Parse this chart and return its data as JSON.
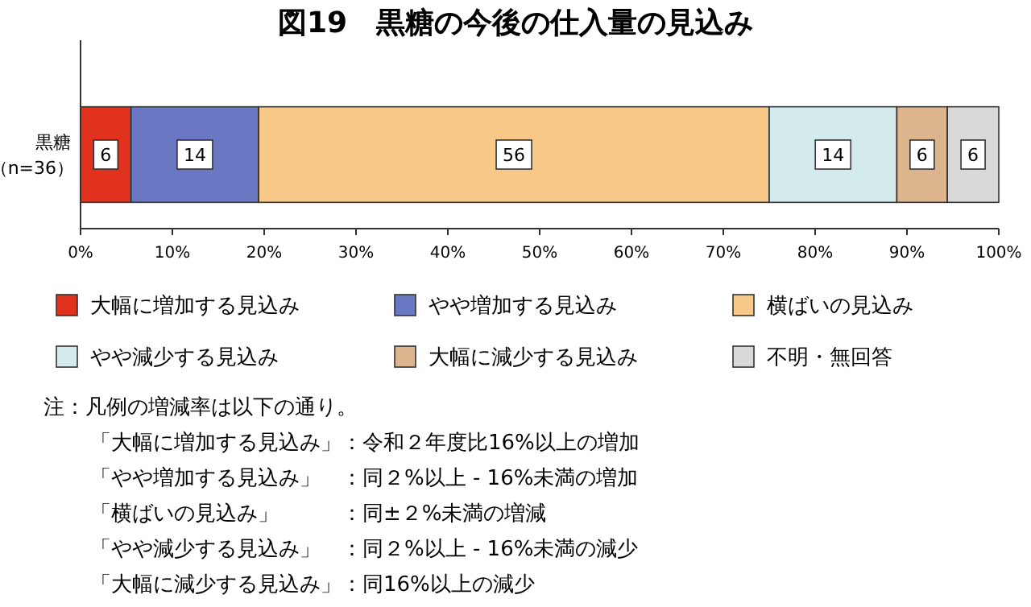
{
  "chart_data": {
    "type": "bar",
    "orientation": "horizontal",
    "stacked": true,
    "title": "図19　黒糖の今後の仕入量の見込み",
    "categories": [
      "黒糖（n=36）"
    ],
    "series": [
      {
        "name": "大幅に増加する見込み",
        "color": "#e0321c",
        "values": [
          5.5
        ],
        "value_labels": [
          "6"
        ]
      },
      {
        "name": "やや増加する見込み",
        "color": "#6a78c4",
        "values": [
          13.9
        ],
        "value_labels": [
          "14"
        ]
      },
      {
        "name": "横ばいの見込み",
        "color": "#f8c888",
        "values": [
          55.6
        ],
        "value_labels": [
          "56"
        ]
      },
      {
        "name": "やや減少する見込み",
        "color": "#d4ebee",
        "values": [
          13.9
        ],
        "value_labels": [
          "14"
        ]
      },
      {
        "name": "大幅に減少する見込み",
        "color": "#dcb58e",
        "values": [
          5.5
        ],
        "value_labels": [
          "6"
        ]
      },
      {
        "name": "不明・無回答",
        "color": "#d9d9d9",
        "values": [
          5.6
        ],
        "value_labels": [
          "6"
        ]
      }
    ],
    "xlim": [
      0,
      100
    ],
    "xticks": [
      {
        "value": 0,
        "label": "0%"
      },
      {
        "value": 10,
        "label": "10%"
      },
      {
        "value": 20,
        "label": "20%"
      },
      {
        "value": 30,
        "label": "30%"
      },
      {
        "value": 40,
        "label": "40%"
      },
      {
        "value": 50,
        "label": "50%"
      },
      {
        "value": 60,
        "label": "60%"
      },
      {
        "value": 70,
        "label": "70%"
      },
      {
        "value": 80,
        "label": "80%"
      },
      {
        "value": 90,
        "label": "90%"
      },
      {
        "value": 100,
        "label": "100%"
      }
    ],
    "grid": false,
    "legend": "bottom",
    "annotations": [
      "注：凡例の増減率は以下の通り。",
      "「大幅に増加する見込み」：令和２年度比16%以上の増加",
      "「やや増加する見込み」　：同２%以上 - 16%未満の増加",
      "「横ばいの見込み」　　　：同±２%未満の増減",
      "「やや減少する見込み」　：同２%以上 - 16%未満の減少",
      "「大幅に減少する見込み」：同16%以上の減少"
    ]
  }
}
